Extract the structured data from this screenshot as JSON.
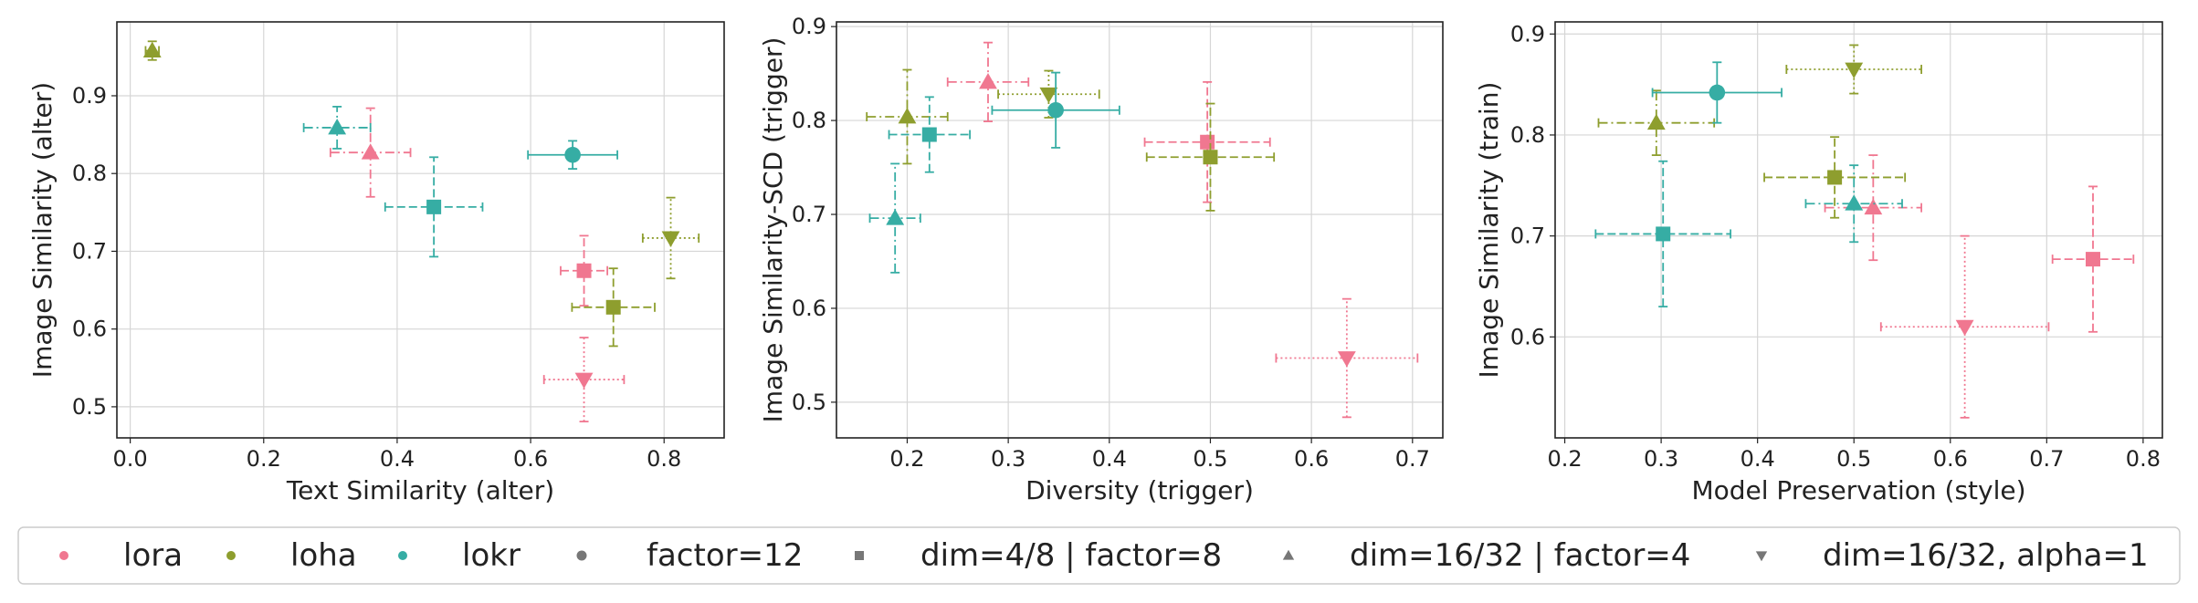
{
  "colors": {
    "lora": "#f07790",
    "loha": "#8e9e2e",
    "lokr": "#36ada4",
    "variant_marker": "#777777",
    "grid": "#d6d6d6",
    "axes": "#222222",
    "legend_border": "#cccccc"
  },
  "legend": {
    "items": [
      {
        "label": "lora",
        "kind": "family",
        "family": "lora"
      },
      {
        "label": "loha",
        "kind": "family",
        "family": "loha"
      },
      {
        "label": "lokr",
        "kind": "family",
        "family": "lokr"
      },
      {
        "label": "factor=12",
        "kind": "variant",
        "marker": "circle"
      },
      {
        "label": "dim=4/8 | factor=8",
        "kind": "variant",
        "marker": "square"
      },
      {
        "label": "dim=16/32 | factor=4",
        "kind": "variant",
        "marker": "triangle-up"
      },
      {
        "label": "dim=16/32, alpha=1",
        "kind": "variant",
        "marker": "triangle-down"
      }
    ]
  },
  "chart_data": [
    {
      "type": "scatter",
      "xlabel": "Text Similarity (alter)",
      "ylabel": "Image Similarity (alter)",
      "xlim": [
        -0.02,
        0.89
      ],
      "ylim": [
        0.46,
        0.995
      ],
      "xticks": [
        0.0,
        0.2,
        0.4,
        0.6,
        0.8
      ],
      "yticks": [
        0.5,
        0.6,
        0.7,
        0.8,
        0.9
      ],
      "xtick_labels": [
        "0.0",
        "0.2",
        "0.4",
        "0.6",
        "0.8"
      ],
      "ytick_labels": [
        "0.5",
        "0.6",
        "0.7",
        "0.8",
        "0.9"
      ],
      "grid": true,
      "points": [
        {
          "family": "lora",
          "marker": "square",
          "x": 0.68,
          "y": 0.675,
          "xerr": 0.035,
          "yerr": 0.045
        },
        {
          "family": "lora",
          "marker": "triangle-up",
          "x": 0.36,
          "y": 0.827,
          "xerr": 0.06,
          "yerr": 0.057
        },
        {
          "family": "lora",
          "marker": "triangle-down",
          "x": 0.68,
          "y": 0.535,
          "xerr": 0.06,
          "yerr": 0.054
        },
        {
          "family": "loha",
          "marker": "triangle-up",
          "x": 0.033,
          "y": 0.958,
          "xerr": 0.01,
          "yerr": 0.012
        },
        {
          "family": "loha",
          "marker": "square",
          "x": 0.724,
          "y": 0.628,
          "xerr": 0.062,
          "yerr": 0.05
        },
        {
          "family": "loha",
          "marker": "triangle-down",
          "x": 0.81,
          "y": 0.717,
          "xerr": 0.042,
          "yerr": 0.052
        },
        {
          "family": "lokr",
          "marker": "triangle-up",
          "x": 0.31,
          "y": 0.859,
          "xerr": 0.05,
          "yerr": 0.027
        },
        {
          "family": "lokr",
          "marker": "square",
          "x": 0.455,
          "y": 0.757,
          "xerr": 0.073,
          "yerr": 0.064
        },
        {
          "family": "lokr",
          "marker": "circle",
          "x": 0.663,
          "y": 0.824,
          "xerr": 0.067,
          "yerr": 0.018
        }
      ]
    },
    {
      "type": "scatter",
      "xlabel": "Diversity (trigger)",
      "ylabel": "Image Similarity-SCD (trigger)",
      "xlim": [
        0.13,
        0.73
      ],
      "ylim": [
        0.462,
        0.905
      ],
      "xticks": [
        0.2,
        0.3,
        0.4,
        0.5,
        0.6,
        0.7
      ],
      "yticks": [
        0.5,
        0.6,
        0.7,
        0.8,
        0.9
      ],
      "xtick_labels": [
        "0.2",
        "0.3",
        "0.4",
        "0.5",
        "0.6",
        "0.7"
      ],
      "ytick_labels": [
        "0.5",
        "0.6",
        "0.7",
        "0.8",
        "0.9"
      ],
      "grid": true,
      "points": [
        {
          "family": "lora",
          "marker": "triangle-up",
          "x": 0.28,
          "y": 0.841,
          "xerr": 0.04,
          "yerr": 0.042
        },
        {
          "family": "lora",
          "marker": "square",
          "x": 0.497,
          "y": 0.777,
          "xerr": 0.062,
          "yerr": 0.064
        },
        {
          "family": "lora",
          "marker": "triangle-down",
          "x": 0.635,
          "y": 0.547,
          "xerr": 0.07,
          "yerr": 0.063
        },
        {
          "family": "loha",
          "marker": "triangle-up",
          "x": 0.2,
          "y": 0.804,
          "xerr": 0.04,
          "yerr": 0.05
        },
        {
          "family": "loha",
          "marker": "triangle-down",
          "x": 0.34,
          "y": 0.828,
          "xerr": 0.05,
          "yerr": 0.025
        },
        {
          "family": "loha",
          "marker": "square",
          "x": 0.5,
          "y": 0.761,
          "xerr": 0.063,
          "yerr": 0.057
        },
        {
          "family": "lokr",
          "marker": "square",
          "x": 0.222,
          "y": 0.785,
          "xerr": 0.04,
          "yerr": 0.04
        },
        {
          "family": "lokr",
          "marker": "triangle-up",
          "x": 0.188,
          "y": 0.696,
          "xerr": 0.025,
          "yerr": 0.058
        },
        {
          "family": "lokr",
          "marker": "circle",
          "x": 0.347,
          "y": 0.811,
          "xerr": 0.063,
          "yerr": 0.04
        }
      ]
    },
    {
      "type": "scatter",
      "xlabel": "Model Preservation (style)",
      "ylabel": "Image Similarity (train)",
      "xlim": [
        0.19,
        0.82
      ],
      "ylim": [
        0.5,
        0.912
      ],
      "xticks": [
        0.2,
        0.3,
        0.4,
        0.5,
        0.6,
        0.7,
        0.8
      ],
      "yticks": [
        0.6,
        0.7,
        0.8,
        0.9
      ],
      "xtick_labels": [
        "0.2",
        "0.3",
        "0.4",
        "0.5",
        "0.6",
        "0.7",
        "0.8"
      ],
      "ytick_labels": [
        "0.6",
        "0.7",
        "0.8",
        "0.9"
      ],
      "grid": true,
      "points": [
        {
          "family": "lora",
          "marker": "triangle-up",
          "x": 0.52,
          "y": 0.728,
          "xerr": 0.05,
          "yerr": 0.052
        },
        {
          "family": "lora",
          "marker": "square",
          "x": 0.748,
          "y": 0.677,
          "xerr": 0.042,
          "yerr": 0.072
        },
        {
          "family": "lora",
          "marker": "triangle-down",
          "x": 0.615,
          "y": 0.61,
          "xerr": 0.087,
          "yerr": 0.09
        },
        {
          "family": "loha",
          "marker": "triangle-up",
          "x": 0.295,
          "y": 0.812,
          "xerr": 0.06,
          "yerr": 0.032
        },
        {
          "family": "loha",
          "marker": "square",
          "x": 0.48,
          "y": 0.758,
          "xerr": 0.073,
          "yerr": 0.04
        },
        {
          "family": "loha",
          "marker": "triangle-down",
          "x": 0.5,
          "y": 0.865,
          "xerr": 0.07,
          "yerr": 0.024
        },
        {
          "family": "lokr",
          "marker": "circle",
          "x": 0.358,
          "y": 0.842,
          "xerr": 0.067,
          "yerr": 0.03
        },
        {
          "family": "lokr",
          "marker": "square",
          "x": 0.302,
          "y": 0.702,
          "xerr": 0.07,
          "yerr": 0.072
        },
        {
          "family": "lokr",
          "marker": "triangle-up",
          "x": 0.5,
          "y": 0.732,
          "xerr": 0.05,
          "yerr": 0.038
        }
      ]
    }
  ]
}
